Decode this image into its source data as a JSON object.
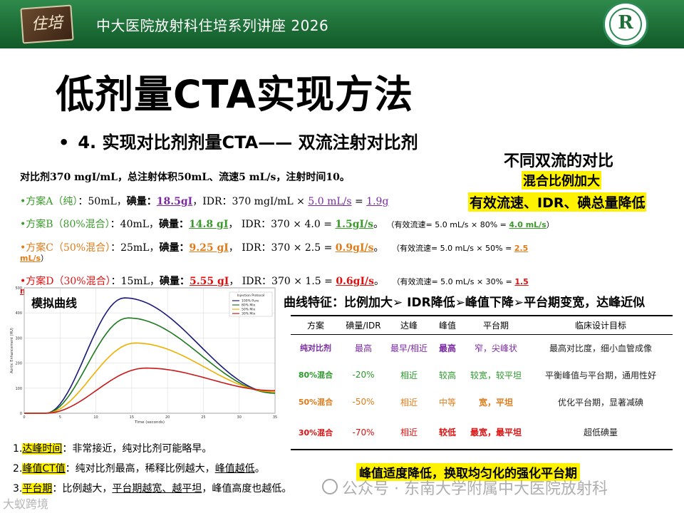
{
  "header": {
    "title": "中大医院放射科住培系列讲座  2026",
    "logo_text": "住培",
    "emblem_letter": "R"
  },
  "slide_title": "低剂量CTA实现方法",
  "bullet": {
    "marker": "•",
    "text": "4. 实现对比剂剂量CTA——  双流注射对比剂"
  },
  "right_headings": {
    "h1": "不同双流的对比",
    "h2": "混合比例加大",
    "h3": "有效流速、IDR、碘总量降低"
  },
  "intro": "对比剂370 mgI/mL，总注射体积50mL、流速5 mL/s，注射时间10。",
  "plans": {
    "A": {
      "name": "•方案A（纯）",
      "vol": "：50mL，",
      "iodine_label": "碘量：",
      "iodine": "18.5gI",
      "idr_pre": "，IDR：370 mgI/mL × ",
      "rate": "5.0 mL/s",
      "eq": " = ",
      "idr": "1.9g"
    },
    "B": {
      "name": "•方案B（80%混合）",
      "vol": "：40mL，",
      "iodine_label": "碘量：",
      "iodine": "14.8 gI",
      "idr_pre": "，  IDR：370 × 4.0 = ",
      "idr": "1.5gI/s",
      "tail": "。",
      "eff_pre": "（有效流速= 5.0 mL/s × 80% = ",
      "eff": "4.0 mL/s",
      "eff_post": "）"
    },
    "C": {
      "name": "•方案C（50%混合）",
      "vol": "：25mL，",
      "iodine_label": "碘量：",
      "iodine": "9.25 gI",
      "idr_pre": "，  IDR：370 × 2.5 = ",
      "idr": "0.9gI/s",
      "tail": "。",
      "eff_pre": "（有效流速= 5.0 mL/s × 50% = ",
      "eff": "2.5",
      "eff_wrap": "mL/s",
      "eff_post": "）"
    },
    "D": {
      "name": "•方案D（30%混合）",
      "vol": "：15mL，",
      "iodine_label": "碘量：",
      "iodine": "5.55 gI",
      "idr_pre": "，  IDR：370 × 1.5 = ",
      "idr": "0.6gI/s",
      "tail": "。",
      "eff_pre": "（有效流速= 5.0 mL/s × 30% = ",
      "eff": "1.5",
      "eff_wrap": "mL/s",
      "eff_post": "）"
    }
  },
  "sim_label": "模拟曲线",
  "curve_features": "曲线特征：比例加大➢ IDR降低➢峰值下降➢平台期变宽，达峰近似",
  "table": {
    "headers": [
      "方案",
      "碘量/IDR",
      "达峰",
      "峰值",
      "平台期",
      "临床设计目标"
    ],
    "rows": [
      [
        "纯对比剂",
        "最高",
        "最早/相近",
        "最高",
        "窄，尖峰状",
        "最高对比度，细小血管成像"
      ],
      [
        "80%混合",
        "-20%",
        "相近",
        "较高",
        "较宽，较平坦",
        "平衡峰值与平台期，通用性好"
      ],
      [
        "50%混合",
        "-50%",
        "相近",
        "中等",
        "宽，平坦",
        "优化平台期，显著减碘"
      ],
      [
        "30%混合",
        "-70%",
        "相近",
        "较低",
        "最宽，最平坦",
        "超低碘量"
      ]
    ],
    "row_colors": [
      "#7a2aa0",
      "#2a9a2a",
      "#e07b1a",
      "#e01010"
    ]
  },
  "notes": [
    {
      "num": "1.",
      "key": "达峰时间",
      "text": "：非常接近，纯对比剂可能略早。"
    },
    {
      "num": "2.",
      "key": "峰值CT值",
      "text": "：纯对比剂最高，稀释比例越大，",
      "key2": "峰值越低",
      "tail": "。"
    },
    {
      "num": "3.",
      "key": "平台期",
      "text": "：比例越大，",
      "key2": "平台期越宽、越平坦",
      "tail": "，峰值高度也越低。"
    }
  ],
  "bottom_banner": "峰值适度降低，换取均匀化的强化平台期",
  "watermark": "公众号 · 东南大学附属中大医院放射科",
  "corner_mark": "大蚁跨境",
  "chart_data": {
    "type": "line",
    "xlabel": "Time (seconds)",
    "ylabel": "Aortic Enhancement (HU)",
    "xlim": [
      0,
      35
    ],
    "ylim": [
      0,
      500
    ],
    "x_ticks": [
      0,
      5,
      10,
      15,
      20,
      25,
      30,
      35
    ],
    "y_ticks": [
      0,
      100,
      200,
      300,
      400,
      500
    ],
    "legend_title": "Injection Protocol",
    "legend_position": "top-right",
    "grid": true,
    "series": [
      {
        "name": "100% Pure",
        "color": "#1a1a7a",
        "peak_x": 14,
        "peak_y": 460,
        "end_y": 80
      },
      {
        "name": "80% Mix",
        "color": "#1e7a1e",
        "peak_x": 14.5,
        "peak_y": 380,
        "end_y": 80
      },
      {
        "name": "50% Mix",
        "color": "#f0b000",
        "peak_x": 15.5,
        "peak_y": 280,
        "end_y": 85
      },
      {
        "name": "30% Mix",
        "color": "#c81a1a",
        "peak_x": 17,
        "peak_y": 180,
        "end_y": 90
      }
    ]
  }
}
